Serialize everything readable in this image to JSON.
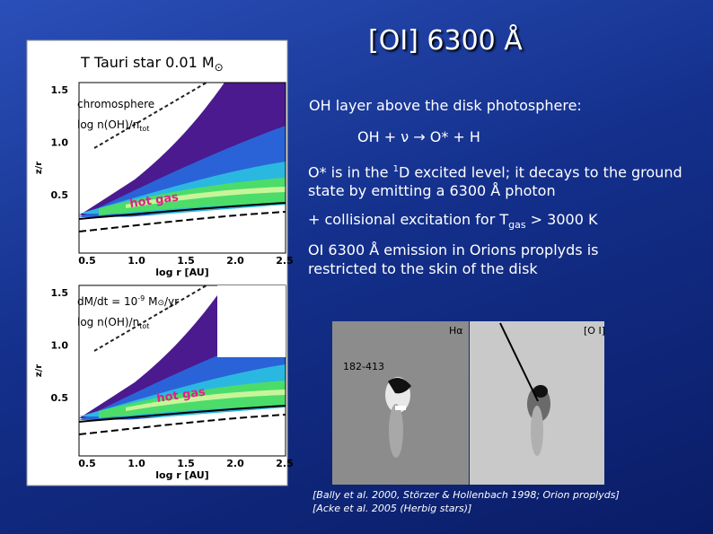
{
  "left_panel": {
    "title": "T Tauri star 0.01 M",
    "title_symbol": "⊙",
    "top_plot": {
      "label1": "chromosphere",
      "label2": "log n(OH)/n",
      "label2_sub": "tot",
      "hot_label": "hot gas",
      "y_axis": "z/r",
      "x_axis": "log r [AU]",
      "yticks": [
        "1.5",
        "1.0",
        "0.5"
      ],
      "xticks": [
        "0.5",
        "1.0",
        "1.5",
        "2.0",
        "2.5"
      ]
    },
    "bottom_plot": {
      "label1": "dM/dt = 10",
      "label1_sup": "-9",
      "label1_rest": " M",
      "label1_symbol": "⊙",
      "label1_end": "/yr",
      "label2": "log n(OH)/n",
      "label2_sub": "tot",
      "hot_label": "hot gas",
      "y_axis": "z/r",
      "x_axis": "log r [AU]",
      "yticks": [
        "1.5",
        "1.0",
        "0.5"
      ],
      "xticks": [
        "0.5",
        "1.0",
        "1.5",
        "2.0",
        "2.5"
      ]
    }
  },
  "right_panel": {
    "title": "[OI] 6300 Å",
    "line1": "OH layer above the disk photosphere:",
    "reaction": "OH + ν → O* + H",
    "line2_a": "O* is in the ",
    "line2_sup": "1",
    "line2_b": "D excited level; it decays to the ground state by emitting a 6300 Å photon",
    "line3_a": "+ collisional excitation for T",
    "line3_sub": "gas",
    "line3_b": " > 3000 K",
    "line4": "OI 6300 Å emission in Orions proplyds is restricted to the skin of the disk",
    "image_labels": [
      "Hα",
      "182-413",
      "[O I]"
    ],
    "references": [
      "[Bally et al. 2000, Störzer & Hollenbach 1998; Orion proplyds]",
      "[Acke et al. 2005 (Herbig stars)]"
    ]
  }
}
